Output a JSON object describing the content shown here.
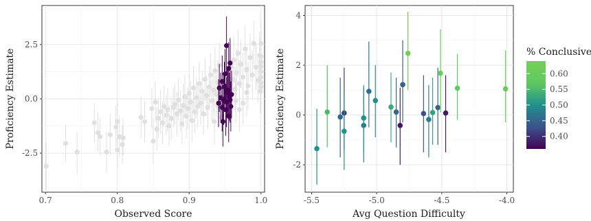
{
  "chart_data": [
    {
      "type": "scatter",
      "title": "",
      "xlabel": "Observed Score",
      "ylabel": "Proficiency Estimate",
      "xlim": [
        0.695,
        1.005
      ],
      "ylim": [
        -4.3,
        4.3
      ],
      "xticks": [
        0.7,
        0.8,
        0.9,
        1.0
      ],
      "xtick_labels": [
        "0.7",
        "0.8",
        "0.9",
        "1.0"
      ],
      "yticks": [
        -2.5,
        0.0,
        2.5
      ],
      "ytick_labels": [
        "-2.5",
        "0.0",
        "2.5"
      ],
      "grid": true,
      "colors": {
        "background": "#e0e0e0",
        "highlight": "#440154"
      },
      "series": [
        {
          "points": [
            {
              "x": 0.701,
              "y": -3.1,
              "lo": -4.2,
              "hi": -2.0
            },
            {
              "x": 0.728,
              "y": -2.05,
              "lo": -2.9,
              "hi": -1.2
            },
            {
              "x": 0.744,
              "y": -2.45,
              "lo": -3.5,
              "hi": -1.5
            },
            {
              "x": 0.768,
              "y": -1.1,
              "lo": -2.0,
              "hi": -0.2
            },
            {
              "x": 0.773,
              "y": -1.55,
              "lo": -2.4,
              "hi": -0.6
            },
            {
              "x": 0.776,
              "y": -1.75,
              "lo": -2.6,
              "hi": -0.9
            },
            {
              "x": 0.785,
              "y": -2.45,
              "lo": -3.4,
              "hi": -1.5
            },
            {
              "x": 0.79,
              "y": -1.65,
              "lo": -2.6,
              "hi": -0.7
            },
            {
              "x": 0.798,
              "y": -1.3,
              "lo": -2.2,
              "hi": -0.3
            },
            {
              "x": 0.8,
              "y": -1.05,
              "lo": -2.0,
              "hi": -0.1
            },
            {
              "x": 0.803,
              "y": -1.75,
              "lo": -2.7,
              "hi": -0.8
            },
            {
              "x": 0.8,
              "y": -2.35,
              "lo": -3.2,
              "hi": -1.5
            },
            {
              "x": 0.807,
              "y": -2.1,
              "lo": -3.0,
              "hi": -1.2
            },
            {
              "x": 0.808,
              "y": -1.8,
              "lo": -2.6,
              "hi": -0.9
            },
            {
              "x": 0.833,
              "y": -0.85,
              "lo": -1.8,
              "hi": 0.1
            },
            {
              "x": 0.838,
              "y": -1.05,
              "lo": -2.0,
              "hi": -0.1
            },
            {
              "x": 0.848,
              "y": -0.45,
              "lo": -1.4,
              "hi": 0.5
            },
            {
              "x": 0.85,
              "y": -1.95,
              "lo": -3.0,
              "hi": -0.9
            },
            {
              "x": 0.853,
              "y": -0.15,
              "lo": -1.1,
              "hi": 0.8
            },
            {
              "x": 0.855,
              "y": -1.4,
              "lo": -2.4,
              "hi": -0.4
            },
            {
              "x": 0.857,
              "y": -0.9,
              "lo": -1.8,
              "hi": 0.0
            },
            {
              "x": 0.86,
              "y": -0.6,
              "lo": -1.6,
              "hi": 0.4
            },
            {
              "x": 0.863,
              "y": -1.1,
              "lo": -2.1,
              "hi": -0.1
            },
            {
              "x": 0.865,
              "y": -0.35,
              "lo": -1.3,
              "hi": 0.6
            },
            {
              "x": 0.868,
              "y": -0.75,
              "lo": -1.7,
              "hi": 0.2
            },
            {
              "x": 0.87,
              "y": -0.5,
              "lo": -1.5,
              "hi": 0.5
            },
            {
              "x": 0.872,
              "y": -1.25,
              "lo": -2.2,
              "hi": -0.3
            },
            {
              "x": 0.875,
              "y": -0.9,
              "lo": -1.9,
              "hi": 0.1
            },
            {
              "x": 0.878,
              "y": -0.4,
              "lo": -1.3,
              "hi": 0.5
            },
            {
              "x": 0.88,
              "y": -0.25,
              "lo": -1.2,
              "hi": 0.7
            },
            {
              "x": 0.883,
              "y": -0.7,
              "lo": -1.7,
              "hi": 0.3
            },
            {
              "x": 0.885,
              "y": -0.05,
              "lo": -1.0,
              "hi": 0.9
            },
            {
              "x": 0.888,
              "y": -0.55,
              "lo": -1.5,
              "hi": 0.4
            },
            {
              "x": 0.89,
              "y": -1.15,
              "lo": -2.1,
              "hi": -0.2
            },
            {
              "x": 0.892,
              "y": -0.3,
              "lo": -1.3,
              "hi": 0.7
            },
            {
              "x": 0.894,
              "y": 0.1,
              "lo": -0.9,
              "hi": 1.1
            },
            {
              "x": 0.896,
              "y": -0.8,
              "lo": -1.8,
              "hi": 0.2
            },
            {
              "x": 0.898,
              "y": -0.45,
              "lo": -1.4,
              "hi": 0.5
            },
            {
              "x": 0.9,
              "y": 0.25,
              "lo": -0.7,
              "hi": 1.2
            },
            {
              "x": 0.902,
              "y": -0.15,
              "lo": -1.1,
              "hi": 0.8
            },
            {
              "x": 0.904,
              "y": -1.0,
              "lo": -2.0,
              "hi": 0.0
            },
            {
              "x": 0.906,
              "y": 0.5,
              "lo": -0.5,
              "hi": 1.5
            },
            {
              "x": 0.908,
              "y": -0.6,
              "lo": -1.6,
              "hi": 0.4
            },
            {
              "x": 0.91,
              "y": 0.05,
              "lo": -0.9,
              "hi": 1.0
            },
            {
              "x": 0.912,
              "y": -0.35,
              "lo": -1.3,
              "hi": 0.6
            },
            {
              "x": 0.914,
              "y": 0.7,
              "lo": -0.3,
              "hi": 1.7
            },
            {
              "x": 0.916,
              "y": -0.2,
              "lo": -1.2,
              "hi": 0.8
            },
            {
              "x": 0.918,
              "y": 0.35,
              "lo": -0.6,
              "hi": 1.3
            },
            {
              "x": 0.92,
              "y": -0.7,
              "lo": -1.7,
              "hi": 0.3
            },
            {
              "x": 0.922,
              "y": 0.9,
              "lo": -0.1,
              "hi": 1.9
            },
            {
              "x": 0.924,
              "y": 0.15,
              "lo": -0.8,
              "hi": 1.1
            },
            {
              "x": 0.926,
              "y": -0.4,
              "lo": -1.4,
              "hi": 0.6
            },
            {
              "x": 0.928,
              "y": 0.55,
              "lo": -0.4,
              "hi": 1.5
            },
            {
              "x": 0.93,
              "y": 1.1,
              "lo": 0.1,
              "hi": 2.1
            },
            {
              "x": 0.932,
              "y": -0.1,
              "lo": -1.1,
              "hi": 0.9
            },
            {
              "x": 0.934,
              "y": 0.4,
              "lo": -0.6,
              "hi": 1.4
            },
            {
              "x": 0.936,
              "y": 1.3,
              "lo": 0.3,
              "hi": 2.4
            },
            {
              "x": 0.938,
              "y": 0.2,
              "lo": -0.8,
              "hi": 1.2
            },
            {
              "x": 0.94,
              "y": 0.75,
              "lo": -0.3,
              "hi": 1.8
            },
            {
              "x": 0.942,
              "y": 1.55,
              "lo": 0.5,
              "hi": 2.6
            },
            {
              "x": 0.958,
              "y": 1.45,
              "lo": 0.4,
              "hi": 2.5
            },
            {
              "x": 0.96,
              "y": 0.9,
              "lo": -0.1,
              "hi": 1.9
            },
            {
              "x": 0.962,
              "y": 1.8,
              "lo": 0.7,
              "hi": 2.9
            },
            {
              "x": 0.964,
              "y": 0.45,
              "lo": -0.6,
              "hi": 1.5
            },
            {
              "x": 0.966,
              "y": 1.2,
              "lo": 0.1,
              "hi": 2.3
            },
            {
              "x": 0.968,
              "y": 2.1,
              "lo": 1.0,
              "hi": 3.2
            },
            {
              "x": 0.97,
              "y": 0.7,
              "lo": -0.4,
              "hi": 1.8
            },
            {
              "x": 0.972,
              "y": 1.6,
              "lo": 0.5,
              "hi": 2.7
            },
            {
              "x": 0.975,
              "y": 1.0,
              "lo": -0.1,
              "hi": 2.1
            },
            {
              "x": 0.978,
              "y": 2.3,
              "lo": 1.2,
              "hi": 3.4
            },
            {
              "x": 0.98,
              "y": 1.35,
              "lo": 0.3,
              "hi": 2.4
            },
            {
              "x": 0.982,
              "y": 0.6,
              "lo": -0.5,
              "hi": 1.7
            },
            {
              "x": 0.985,
              "y": 1.9,
              "lo": 0.8,
              "hi": 3.0
            },
            {
              "x": 0.988,
              "y": 1.1,
              "lo": 0.0,
              "hi": 2.2
            },
            {
              "x": 0.99,
              "y": 2.55,
              "lo": 1.5,
              "hi": 3.6
            },
            {
              "x": 0.993,
              "y": 1.45,
              "lo": 0.4,
              "hi": 2.5
            },
            {
              "x": 0.996,
              "y": 0.85,
              "lo": -0.2,
              "hi": 1.9
            },
            {
              "x": 0.998,
              "y": 2.0,
              "lo": 0.9,
              "hi": 3.1
            },
            {
              "x": 1.0,
              "y": 2.55,
              "lo": 1.5,
              "hi": 3.6
            },
            {
              "x": 1.0,
              "y": 1.95,
              "lo": 0.9,
              "hi": 3.0
            },
            {
              "x": 1.0,
              "y": 1.7,
              "lo": 0.6,
              "hi": 2.8
            },
            {
              "x": 1.0,
              "y": 1.5,
              "lo": 0.4,
              "hi": 2.6
            },
            {
              "x": 1.0,
              "y": 1.25,
              "lo": 0.2,
              "hi": 2.3
            },
            {
              "x": 1.0,
              "y": 1.0,
              "lo": -0.1,
              "hi": 2.1
            },
            {
              "x": 1.0,
              "y": 0.75,
              "lo": -0.3,
              "hi": 1.8
            },
            {
              "x": 1.0,
              "y": 0.55,
              "lo": -0.5,
              "hi": 1.6
            },
            {
              "x": 0.999,
              "y": 0.35,
              "lo": -0.7,
              "hi": 1.4
            },
            {
              "x": 0.98,
              "y": 0.3,
              "lo": -0.8,
              "hi": 1.4
            },
            {
              "x": 0.975,
              "y": -0.2,
              "lo": -1.2,
              "hi": 0.8
            },
            {
              "x": 0.97,
              "y": -0.5,
              "lo": -1.5,
              "hi": 0.5
            },
            {
              "x": 0.965,
              "y": -0.1,
              "lo": -1.1,
              "hi": 0.9
            },
            {
              "x": 0.955,
              "y": -0.65,
              "lo": -1.7,
              "hi": 0.4
            },
            {
              "x": 0.945,
              "y": -0.85,
              "lo": -1.9,
              "hi": 0.2
            },
            {
              "x": 0.94,
              "y": -0.3,
              "lo": -1.3,
              "hi": 0.7
            },
            {
              "x": 0.935,
              "y": -1.05,
              "lo": -2.1,
              "hi": 0.0
            }
          ]
        },
        {
          "color": "#440154",
          "points": [
            {
              "x": 0.952,
              "y": 2.45,
              "lo": 1.2,
              "hi": 3.8
            },
            {
              "x": 0.955,
              "y": 1.4,
              "lo": 0.2,
              "hi": 2.6
            },
            {
              "x": 0.957,
              "y": 1.65,
              "lo": 0.5,
              "hi": 2.8
            },
            {
              "x": 0.95,
              "y": 1.15,
              "lo": 0.0,
              "hi": 2.3
            },
            {
              "x": 0.946,
              "y": 0.8,
              "lo": -0.4,
              "hi": 2.0
            },
            {
              "x": 0.949,
              "y": 0.55,
              "lo": -0.6,
              "hi": 1.7
            },
            {
              "x": 0.954,
              "y": 0.4,
              "lo": -0.7,
              "hi": 1.5
            },
            {
              "x": 0.942,
              "y": 0.5,
              "lo": -0.6,
              "hi": 1.6
            },
            {
              "x": 0.959,
              "y": 0.2,
              "lo": -0.9,
              "hi": 1.3
            },
            {
              "x": 0.944,
              "y": 0.05,
              "lo": -1.1,
              "hi": 1.2
            },
            {
              "x": 0.948,
              "y": -0.05,
              "lo": -1.2,
              "hi": 1.1
            },
            {
              "x": 0.952,
              "y": -0.15,
              "lo": -1.3,
              "hi": 1.0
            },
            {
              "x": 0.956,
              "y": 0.1,
              "lo": -1.0,
              "hi": 1.2
            },
            {
              "x": 0.941,
              "y": -0.2,
              "lo": -1.3,
              "hi": 0.9
            },
            {
              "x": 0.946,
              "y": -0.4,
              "lo": -1.5,
              "hi": 0.7
            },
            {
              "x": 0.951,
              "y": -0.5,
              "lo": -1.7,
              "hi": 0.7
            },
            {
              "x": 0.958,
              "y": -0.35,
              "lo": -1.5,
              "hi": 0.8
            },
            {
              "x": 0.955,
              "y": -0.8,
              "lo": -2.0,
              "hi": 0.4
            },
            {
              "x": 0.947,
              "y": -1.05,
              "lo": -2.2,
              "hi": 0.1
            },
            {
              "x": 0.953,
              "y": 0.3,
              "lo": -0.8,
              "hi": 1.4
            },
            {
              "x": 0.957,
              "y": -0.05,
              "lo": -1.1,
              "hi": 1.0
            }
          ]
        }
      ]
    },
    {
      "type": "scatter",
      "title": "",
      "xlabel": "Avg Question Difficulty",
      "ylabel": "Proficiency Estimate",
      "xlim": [
        -5.55,
        -3.95
      ],
      "ylim": [
        -3.1,
        4.4
      ],
      "xticks": [
        -5.5,
        -5.0,
        -4.5,
        -4.0
      ],
      "xtick_labels": [
        "-5.5",
        "-5.0",
        "-4.5",
        "-4.0"
      ],
      "yticks": [
        -2,
        0,
        2,
        4
      ],
      "ytick_labels": [
        "-2",
        "0",
        "2",
        "4"
      ],
      "grid": true,
      "color_scale": {
        "title": "% Conclusive",
        "min": 0.36,
        "max": 0.64,
        "ticks": [
          0.4,
          0.45,
          0.5,
          0.55,
          0.6
        ],
        "tick_labels": [
          "0.40",
          "0.45",
          "0.50",
          "0.55",
          "0.60"
        ],
        "colors": [
          "#440154",
          "#3b528b",
          "#21918c",
          "#5ec962",
          "#74d055"
        ]
      },
      "points": [
        {
          "x": -5.46,
          "y": -1.35,
          "lo": -2.8,
          "hi": 0.25,
          "pc": 0.5
        },
        {
          "x": -5.38,
          "y": 0.12,
          "lo": -1.3,
          "hi": 2.0,
          "pc": 0.55
        },
        {
          "x": -5.28,
          "y": -0.08,
          "lo": -1.7,
          "hi": 1.5,
          "pc": 0.45
        },
        {
          "x": -5.25,
          "y": 0.08,
          "lo": -1.4,
          "hi": 1.9,
          "pc": 0.41
        },
        {
          "x": -5.25,
          "y": -0.65,
          "lo": -2.2,
          "hi": 0.9,
          "pc": 0.5
        },
        {
          "x": -5.1,
          "y": -0.42,
          "lo": -1.9,
          "hi": 1.1,
          "pc": 0.47
        },
        {
          "x": -5.1,
          "y": -0.12,
          "lo": -1.5,
          "hi": 1.2,
          "pc": 0.5
        },
        {
          "x": -5.06,
          "y": 0.95,
          "lo": -0.5,
          "hi": 2.95,
          "pc": 0.46
        },
        {
          "x": -5.01,
          "y": 0.58,
          "lo": -0.9,
          "hi": 2.0,
          "pc": 0.5
        },
        {
          "x": -4.89,
          "y": 0.32,
          "lo": -1.1,
          "hi": 1.7,
          "pc": 0.53
        },
        {
          "x": -4.85,
          "y": 0.12,
          "lo": -1.3,
          "hi": 1.5,
          "pc": 0.45
        },
        {
          "x": -4.82,
          "y": -0.42,
          "lo": -2.0,
          "hi": 1.1,
          "pc": 0.38
        },
        {
          "x": -4.8,
          "y": 1.22,
          "lo": -0.3,
          "hi": 3.0,
          "pc": 0.45
        },
        {
          "x": -4.76,
          "y": 2.48,
          "lo": 1.0,
          "hi": 4.15,
          "pc": 0.63
        },
        {
          "x": -4.64,
          "y": 0.06,
          "lo": -1.5,
          "hi": 1.6,
          "pc": 0.43
        },
        {
          "x": -4.6,
          "y": -0.18,
          "lo": -1.7,
          "hi": 1.2,
          "pc": 0.48
        },
        {
          "x": -4.57,
          "y": 0.1,
          "lo": -1.2,
          "hi": 1.5,
          "pc": 0.52
        },
        {
          "x": -4.53,
          "y": 0.3,
          "lo": -1.2,
          "hi": 1.9,
          "pc": 0.45
        },
        {
          "x": -4.51,
          "y": 1.68,
          "lo": 0.1,
          "hi": 3.45,
          "pc": 0.6
        },
        {
          "x": -4.47,
          "y": 0.08,
          "lo": -1.5,
          "hi": 1.6,
          "pc": 0.38
        },
        {
          "x": -4.38,
          "y": 1.08,
          "lo": -0.2,
          "hi": 2.45,
          "pc": 0.57
        },
        {
          "x": -4.01,
          "y": 1.05,
          "lo": -0.3,
          "hi": 2.6,
          "pc": 0.59
        }
      ]
    }
  ]
}
